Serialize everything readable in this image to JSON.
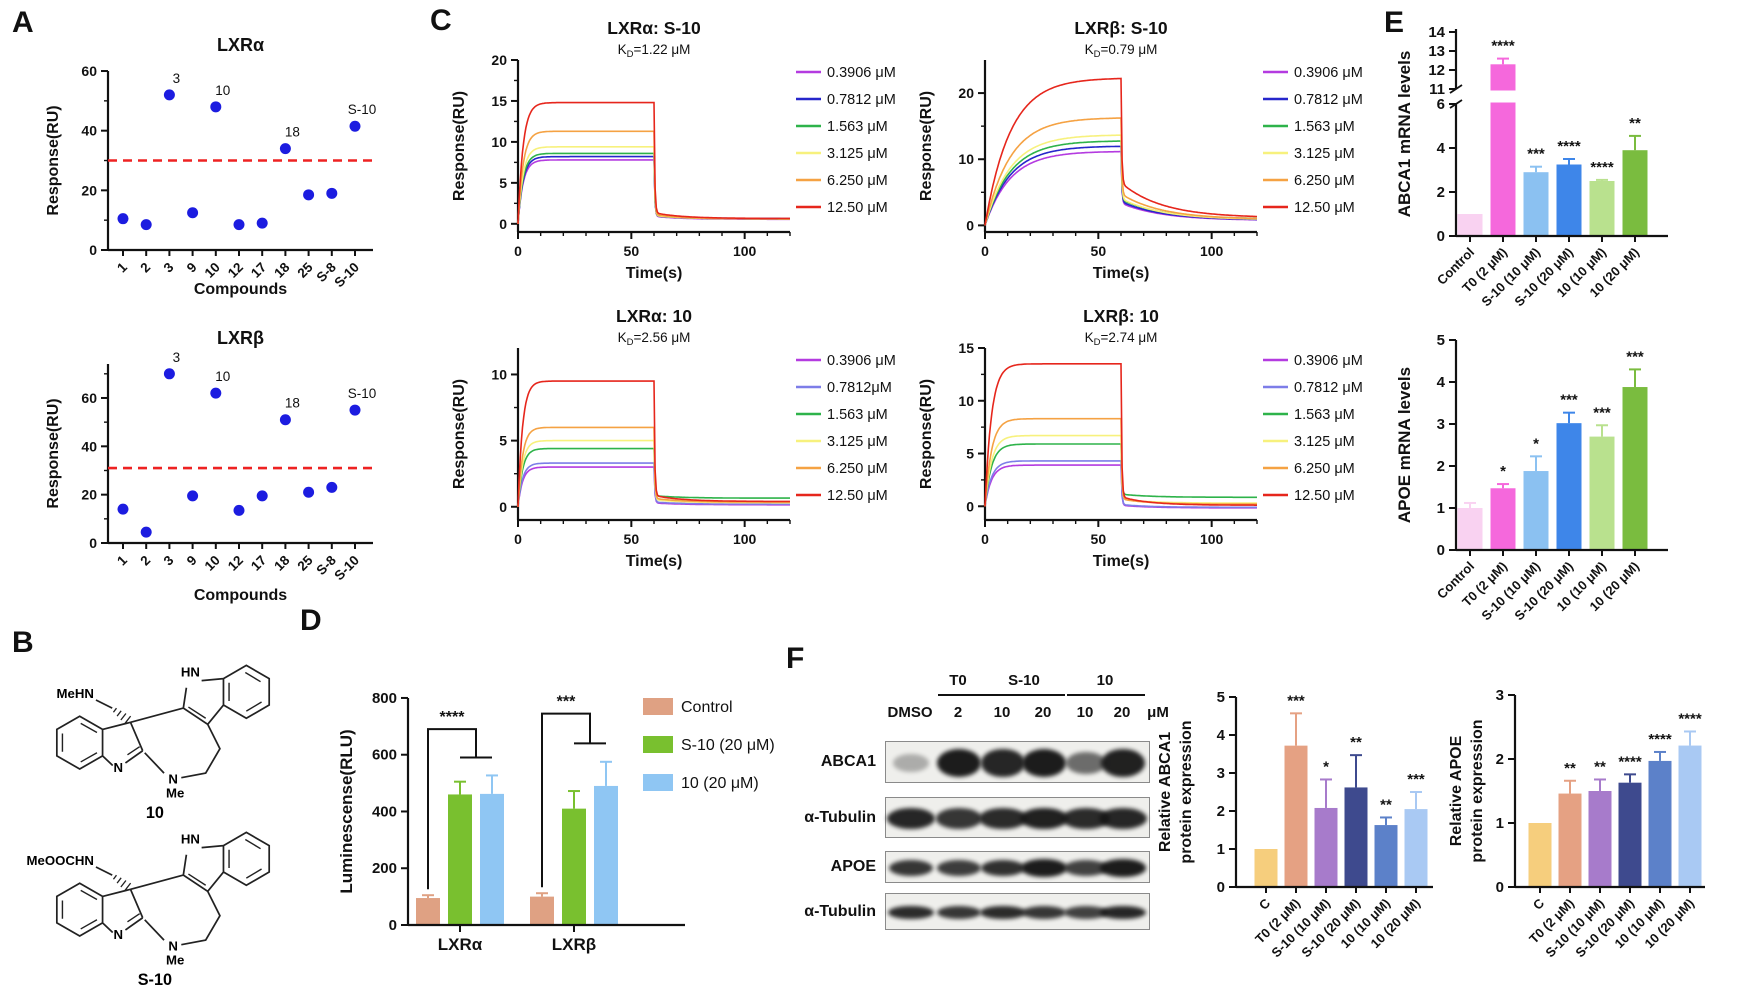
{
  "panels": {
    "a": "A",
    "b": "B",
    "c": "C",
    "d": "D",
    "e": "E",
    "f": "F"
  },
  "panel_b": {
    "compounds": [
      {
        "name": "10",
        "left_group": "MeHN",
        "nh": "HN",
        "ring_n": "N",
        "amine_n": "N",
        "methyl": "Me"
      },
      {
        "name": "S-10",
        "left_group": "MeOOCHN",
        "nh": "HN",
        "ring_n": "N",
        "amine_n": "N",
        "methyl": "Me"
      }
    ]
  },
  "panel_f": {
    "blot": {
      "group_headers": [
        "T0",
        "S-10",
        "10"
      ],
      "lane_labels": [
        "DMSO",
        "2",
        "10",
        "20",
        "10",
        "20"
      ],
      "unit": "μM",
      "rows": [
        "ABCA1",
        "α-Tubulin",
        "APOE",
        "α-Tubulin"
      ],
      "band_intensity": [
        [
          0.3,
          0.97,
          0.92,
          0.97,
          0.6,
          0.95
        ],
        [
          0.92,
          0.85,
          0.9,
          0.95,
          0.9,
          0.92
        ],
        [
          0.85,
          0.82,
          0.88,
          0.97,
          0.8,
          0.97
        ],
        [
          0.9,
          0.85,
          0.9,
          0.85,
          0.8,
          0.92
        ]
      ]
    }
  },
  "chart_data": [
    {
      "id": "lxra-screen",
      "kind": "scatter",
      "panel": "A",
      "title": "LXRα",
      "xlabel": "Compounds",
      "ylabel": "Response(RU)",
      "categories": [
        "1",
        "2",
        "3",
        "9",
        "10",
        "12",
        "17",
        "18",
        "25",
        "S-8",
        "S-10"
      ],
      "values": [
        10.5,
        8.5,
        52,
        12.5,
        48,
        8.5,
        9,
        34,
        18.5,
        19,
        41.5
      ],
      "labeled_points": [
        "3",
        "10",
        "18",
        "S-10"
      ],
      "threshold": 30,
      "yticks": [
        0,
        20,
        40,
        60
      ],
      "ylim": [
        0,
        62
      ],
      "point_color": "#1c1ce0",
      "threshold_color": "#ee2222"
    },
    {
      "id": "lxrb-screen",
      "kind": "scatter",
      "panel": "A",
      "title": "LXRβ",
      "xlabel": "Compounds",
      "ylabel": "Response(RU)",
      "categories": [
        "1",
        "2",
        "3",
        "9",
        "10",
        "12",
        "17",
        "18",
        "25",
        "S-8",
        "S-10"
      ],
      "values": [
        14,
        4.5,
        70,
        19.5,
        62,
        13.5,
        19.5,
        51,
        21,
        23,
        55
      ],
      "labeled_points": [
        "3",
        "10",
        "18",
        "S-10"
      ],
      "threshold": 31,
      "yticks": [
        0,
        20,
        40,
        60
      ],
      "ylim": [
        0,
        76
      ],
      "point_color": "#1c1ce0",
      "threshold_color": "#ee2222"
    },
    {
      "id": "spr-lxra-s10",
      "kind": "spr",
      "panel": "C",
      "title": "LXRα: S-10",
      "kd_label": "KD=1.22 μM",
      "xlabel": "Time(s)",
      "ylabel": "Response(RU)",
      "legend": [
        "0.3906 μM",
        "0.7812 μM",
        "1.563 μM",
        "3.125 μM",
        "6.250 μM",
        "12.50 μM"
      ],
      "colors": [
        "#b43be0",
        "#2626cb",
        "#2eb34a",
        "#f7f17d",
        "#f5a243",
        "#e6261c"
      ],
      "plateaus": [
        7.8,
        8.2,
        8.6,
        9.4,
        11.3,
        14.8
      ],
      "ends": [
        0.55,
        0.65,
        0.6,
        0.6,
        0.6,
        0.65
      ],
      "xticks": [
        0,
        50,
        100
      ],
      "yticks": [
        0,
        5,
        10,
        15,
        20
      ],
      "xlim": [
        0,
        120
      ],
      "ylim": [
        -1,
        20
      ],
      "inject_end": 60,
      "kinetics": {
        "ka": 0.45,
        "s_frac": 0.05,
        "ks": 0.08,
        "kf": 3
      }
    },
    {
      "id": "spr-lxrb-s10",
      "kind": "spr",
      "panel": "C",
      "title": "LXRβ: S-10",
      "kd_label": "KD=0.79 μM",
      "xlabel": "Time(s)",
      "ylabel": "Response(RU)",
      "legend": [
        "0.3906 μM",
        "0.7812 μM",
        "1.563 μM",
        "3.125 μM",
        "6.250 μM",
        "12.50 μM"
      ],
      "colors": [
        "#b43be0",
        "#2626cb",
        "#2eb34a",
        "#f7f17d",
        "#f5a243",
        "#e6261c"
      ],
      "plateaus": [
        11.2,
        12.0,
        12.8,
        13.7,
        16.3,
        22.3
      ],
      "ends": [
        0.75,
        0.8,
        0.95,
        0.85,
        0.9,
        1.15
      ],
      "xticks": [
        0,
        50,
        100
      ],
      "yticks": [
        0,
        10,
        20
      ],
      "xlim": [
        0,
        120
      ],
      "ylim": [
        -1,
        25
      ],
      "inject_end": 60,
      "kinetics": {
        "ka": 0.09,
        "s_frac": 0.25,
        "ks": 0.055,
        "kf": 3
      }
    },
    {
      "id": "spr-lxra-10",
      "kind": "spr",
      "panel": "C",
      "title": "LXRα: 10",
      "kd_label": "KD=2.56 μM",
      "xlabel": "Time(s)",
      "ylabel": "Response(RU)",
      "legend": [
        "0.3906 μM",
        "0.7812μM",
        "1.563 μM",
        "3.125 μM",
        "6.250 μM",
        "12.50 μM"
      ],
      "colors": [
        "#b43be0",
        "#7d7de8",
        "#2eb34a",
        "#f7f17d",
        "#f5a243",
        "#e6261c"
      ],
      "plateaus": [
        3.0,
        3.3,
        4.4,
        5.0,
        6.0,
        9.5
      ],
      "ends": [
        0.15,
        0.2,
        0.65,
        0.3,
        0.35,
        0.4
      ],
      "xticks": [
        0,
        50,
        100
      ],
      "yticks": [
        0,
        5,
        10
      ],
      "xlim": [
        0,
        120
      ],
      "ylim": [
        -1,
        12
      ],
      "inject_end": 60,
      "kinetics": {
        "ka": 0.5,
        "s_frac": 0.05,
        "ks": 0.08,
        "kf": 3
      }
    },
    {
      "id": "spr-lxrb-10",
      "kind": "spr",
      "panel": "C",
      "title": "LXRβ: 10",
      "kd_label": "KD=2.74 μM",
      "xlabel": "Time(s)",
      "ylabel": "Response(RU)",
      "legend": [
        "0.3906 μM",
        "0.7812 μM",
        "1.563 μM",
        "3.125 μM",
        "6.250 μM",
        "12.50 μM"
      ],
      "colors": [
        "#b43be0",
        "#7d7de8",
        "#2eb34a",
        "#f7f17d",
        "#f5a243",
        "#e6261c"
      ],
      "plateaus": [
        3.9,
        4.3,
        5.9,
        6.7,
        8.3,
        13.5
      ],
      "ends": [
        -0.15,
        -0.1,
        0.85,
        0.3,
        0.2,
        0.1
      ],
      "xticks": [
        0,
        50,
        100
      ],
      "yticks": [
        0,
        5,
        10,
        15
      ],
      "xlim": [
        0,
        120
      ],
      "ylim": [
        -1.3,
        15
      ],
      "inject_end": 60,
      "kinetics": {
        "ka": 0.35,
        "s_frac": 0.06,
        "ks": 0.08,
        "kf": 3
      }
    },
    {
      "id": "luminescence",
      "kind": "grouped-bar",
      "panel": "D",
      "ylabel": "Luminescense(RLU)",
      "groups": [
        "LXRα",
        "LXRβ"
      ],
      "series": [
        {
          "name": "Control",
          "color": "#dfa183",
          "values": [
            95,
            100
          ],
          "errors": [
            10,
            12
          ]
        },
        {
          "name": "S-10 (20 μM)",
          "color": "#79c02f",
          "values": [
            460,
            410
          ],
          "errors": [
            45,
            62
          ]
        },
        {
          "name": "10 (20 μM)",
          "color": "#8fc6f3",
          "values": [
            462,
            490
          ],
          "errors": [
            65,
            85
          ]
        }
      ],
      "yticks": [
        0,
        200,
        400,
        600,
        800
      ],
      "ylim": [
        0,
        800
      ],
      "brackets": [
        {
          "group": 0,
          "stars": "****",
          "top": 690,
          "sub": 590
        },
        {
          "group": 1,
          "stars": "***",
          "top": 745,
          "sub": 640
        }
      ]
    },
    {
      "id": "abca1-mrna",
      "kind": "bar",
      "panel": "E",
      "ylabel": "ABCA1 mRNA levels",
      "categories": [
        "Control",
        "T0 (2 μM)",
        "S-10 (10 μM)",
        "S-10 (20 μM)",
        "10 (10 μM)",
        "10 (20 μM)"
      ],
      "values": [
        1.0,
        12.3,
        2.9,
        3.25,
        2.5,
        3.9
      ],
      "errors": [
        0,
        0.3,
        0.25,
        0.25,
        0.05,
        0.65
      ],
      "sig": [
        "",
        "****",
        "***",
        "****",
        "****",
        "**"
      ],
      "colors": [
        "#f9d2f1",
        "#f568dc",
        "#8bc1f1",
        "#3e86e9",
        "#b9e18e",
        "#7abc3f"
      ],
      "break": {
        "lower": [
          0,
          6
        ],
        "upper": [
          11,
          14
        ],
        "lower_ticks": [
          0,
          2,
          4,
          6
        ],
        "upper_ticks": [
          11,
          12,
          13,
          14
        ]
      }
    },
    {
      "id": "apoe-mrna",
      "kind": "bar",
      "panel": "E",
      "ylabel": "APOE mRNA levels",
      "categories": [
        "Control",
        "T0 (2 μM)",
        "S-10 (10 μM)",
        "S-10 (20 μM)",
        "10 (10 μM)",
        "10 (20 μM)"
      ],
      "values": [
        1.0,
        1.47,
        1.88,
        3.02,
        2.7,
        3.88
      ],
      "errors": [
        0.12,
        0.1,
        0.35,
        0.25,
        0.27,
        0.42
      ],
      "sig": [
        "",
        "*",
        "*",
        "***",
        "***",
        "***"
      ],
      "colors": [
        "#f9d2f1",
        "#f568dc",
        "#8bc1f1",
        "#3e86e9",
        "#b9e18e",
        "#7abc3f"
      ],
      "yticks": [
        0,
        1,
        2,
        3,
        4,
        5
      ],
      "ylim": [
        0,
        5
      ]
    },
    {
      "id": "abca1-protein",
      "kind": "bar",
      "panel": "F",
      "ylabel": "Relative ABCA1",
      "ylabel2": "protein expression",
      "categories": [
        "C",
        "T0 (2 μM)",
        "S-10 (10 μM)",
        "S-10 (20 μM)",
        "10 (10 μM)",
        "10 (20 μM)"
      ],
      "values": [
        1.0,
        3.72,
        2.08,
        2.62,
        1.63,
        2.05
      ],
      "errors": [
        0,
        0.85,
        0.75,
        0.85,
        0.2,
        0.45
      ],
      "sig": [
        "",
        "***",
        "*",
        "**",
        "**",
        "***"
      ],
      "colors": [
        "#f6ce7d",
        "#e5a183",
        "#a77bcb",
        "#3e4a8e",
        "#5c81c9",
        "#a9c9f3"
      ],
      "yticks": [
        0,
        1,
        2,
        3,
        4,
        5
      ],
      "ylim": [
        0,
        5
      ]
    },
    {
      "id": "apoe-protein",
      "kind": "bar",
      "panel": "F",
      "ylabel": "Relative APOE",
      "ylabel2": "protein expression",
      "categories": [
        "C",
        "T0 (2 μM)",
        "S-10 (10 μM)",
        "S-10 (20 μM)",
        "10 (10 μM)",
        "10 (20 μM)"
      ],
      "values": [
        1.0,
        1.46,
        1.5,
        1.63,
        1.97,
        2.21
      ],
      "errors": [
        0,
        0.2,
        0.18,
        0.13,
        0.14,
        0.22
      ],
      "sig": [
        "",
        "**",
        "**",
        "****",
        "****",
        "****"
      ],
      "colors": [
        "#f6ce7d",
        "#e5a183",
        "#a77bcb",
        "#3e4a8e",
        "#5c81c9",
        "#a9c9f3"
      ],
      "yticks": [
        0,
        1,
        2,
        3
      ],
      "ylim": [
        0,
        3
      ]
    }
  ]
}
